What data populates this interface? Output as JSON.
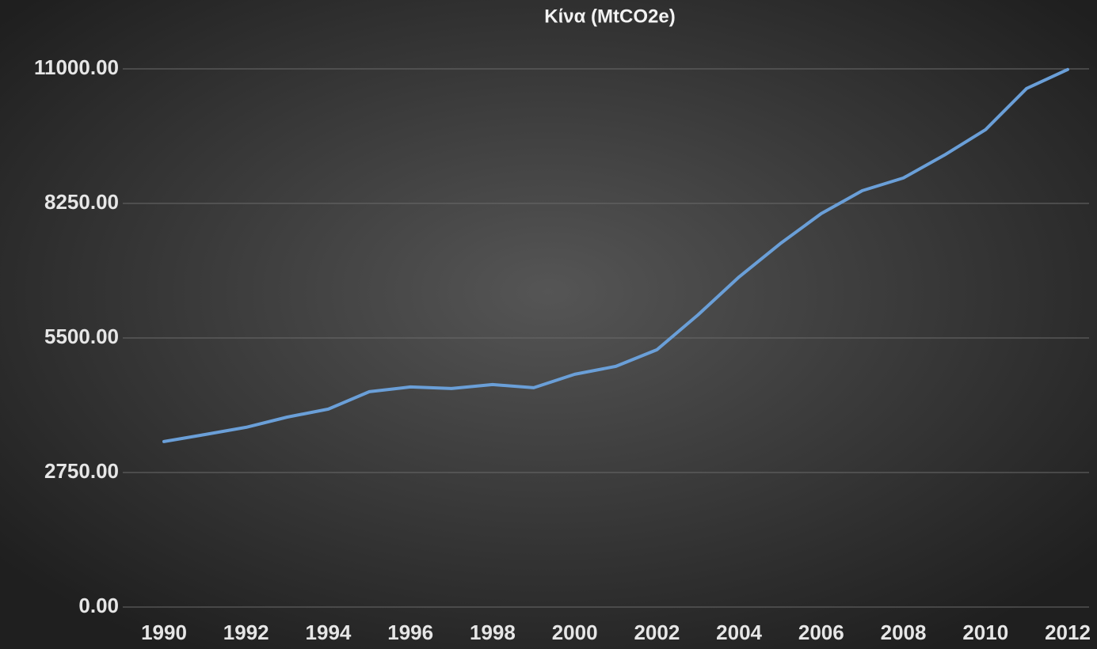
{
  "chart_data": {
    "type": "line",
    "title": "Κίνα (MtCO2e)",
    "x": [
      1990,
      1991,
      1992,
      1993,
      1994,
      1995,
      1996,
      1997,
      1998,
      1999,
      2000,
      2001,
      2002,
      2003,
      2004,
      2005,
      2006,
      2007,
      2008,
      2009,
      2010,
      2011,
      2012
    ],
    "values": [
      3382,
      3527,
      3673,
      3883,
      4045,
      4401,
      4498,
      4466,
      4547,
      4482,
      4757,
      4919,
      5259,
      5971,
      6748,
      7427,
      8042,
      8511,
      8770,
      9239,
      9757,
      10599,
      10987
    ],
    "color": "#6a9fd8",
    "xlim": [
      1990,
      2012
    ],
    "xticks": [
      1990,
      1992,
      1994,
      1996,
      1998,
      2000,
      2002,
      2004,
      2006,
      2008,
      2010,
      2012
    ],
    "ylim": [
      0,
      11000
    ],
    "yticks": [
      {
        "value": 0,
        "label": "0.00"
      },
      {
        "value": 2750,
        "label": "2750.00"
      },
      {
        "value": 5500,
        "label": "5500.00"
      },
      {
        "value": 8250,
        "label": "8250.00"
      },
      {
        "value": 11000,
        "label": "11000.00"
      }
    ],
    "grid": true
  }
}
